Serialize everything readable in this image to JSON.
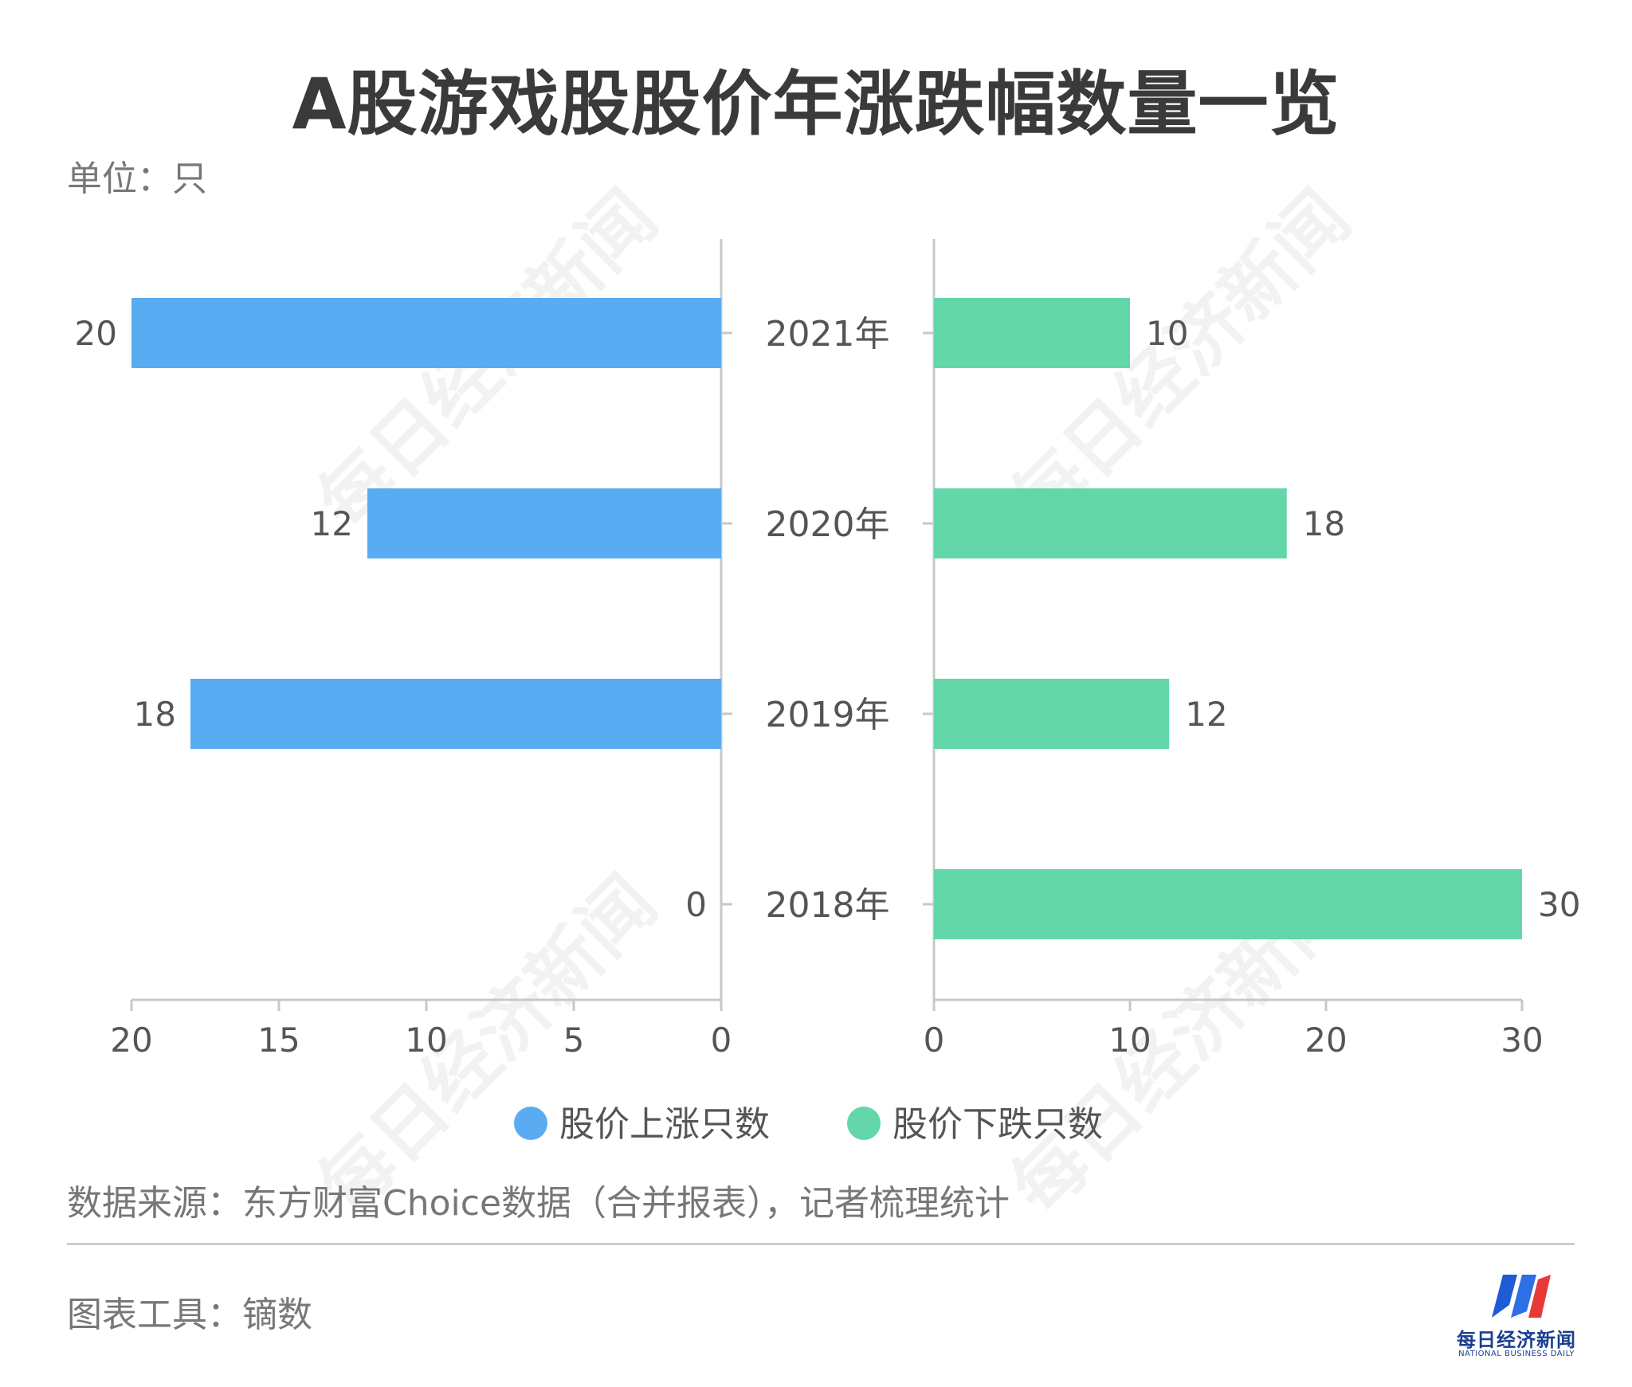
{
  "title": "A股游戏股股价年涨跌幅数量一览",
  "unit": "单位：只",
  "source": "数据来源：东方财富Choice数据（合并报表），记者梳理统计",
  "tool": "图表工具：镝数",
  "watermark": "每日经济新闻",
  "logo": {
    "name_cn": "每日经济新闻",
    "name_en": "NATIONAL BUSINESS DAILY"
  },
  "colors": {
    "rise": "#5aacf2",
    "fall": "#63d7aa",
    "axis": "#c8c8c8",
    "text": "#555555"
  },
  "chart_data": {
    "type": "bar",
    "orientation": "horizontal-butterfly",
    "categories": [
      "2021年",
      "2020年",
      "2019年",
      "2018年"
    ],
    "series": [
      {
        "name": "股价上涨只数",
        "values": [
          20,
          12,
          18,
          0
        ],
        "color": "#5aacf2",
        "side": "left",
        "xlim": [
          0,
          20
        ],
        "ticks": [
          20,
          15,
          10,
          5,
          0
        ]
      },
      {
        "name": "股价下跌只数",
        "values": [
          10,
          18,
          12,
          30
        ],
        "color": "#63d7aa",
        "side": "right",
        "xlim": [
          0,
          30
        ],
        "ticks": [
          0,
          10,
          20,
          30
        ]
      }
    ],
    "legend": "bottom-center",
    "grid": false
  }
}
